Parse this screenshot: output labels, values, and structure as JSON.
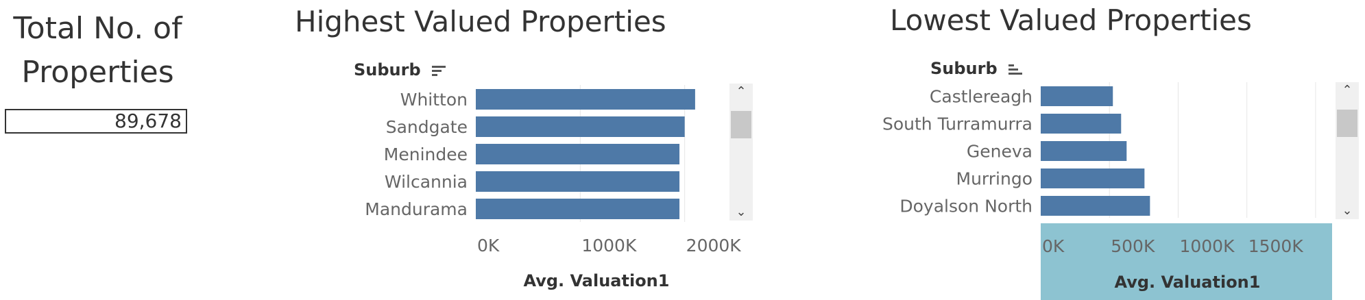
{
  "kpi": {
    "title_line1": "Total No. of",
    "title_line2": "Properties",
    "value": "89,678"
  },
  "chart_data": [
    {
      "type": "bar",
      "orientation": "horizontal",
      "title": "Highest Valued Properties",
      "category_field": "Suburb",
      "xlabel": "Avg. Valuation1",
      "categories": [
        "Whitton",
        "Sandgate",
        "Menindee",
        "Wilcannia",
        "Mandurama"
      ],
      "values": [
        2100000,
        2000000,
        1950000,
        1950000,
        1950000
      ],
      "xlim": [
        0,
        2350000
      ],
      "x_ticks": [
        0,
        1000000,
        2000000
      ],
      "x_tick_labels": [
        "0K",
        "1000K",
        "2000K"
      ],
      "sort": "descending",
      "bar_color": "#4e79a7",
      "grid": true
    },
    {
      "type": "bar",
      "orientation": "horizontal",
      "title": "Lowest Valued Properties",
      "category_field": "Suburb",
      "xlabel": "Avg. Valuation1",
      "categories": [
        "Castlereagh",
        "South Turramurra",
        "Geneva",
        "Murringo",
        "Doyalson North"
      ],
      "values": [
        525000,
        585000,
        625000,
        755000,
        795000
      ],
      "xlim": [
        0,
        2120000
      ],
      "x_ticks": [
        0,
        500000,
        1000000,
        1500000
      ],
      "x_tick_labels": [
        "0K",
        "500K",
        "1000K",
        "1500K"
      ],
      "sort": "ascending",
      "bar_color": "#4e79a7",
      "axis_highlight_color": "#8dc3d1",
      "grid": true
    }
  ]
}
